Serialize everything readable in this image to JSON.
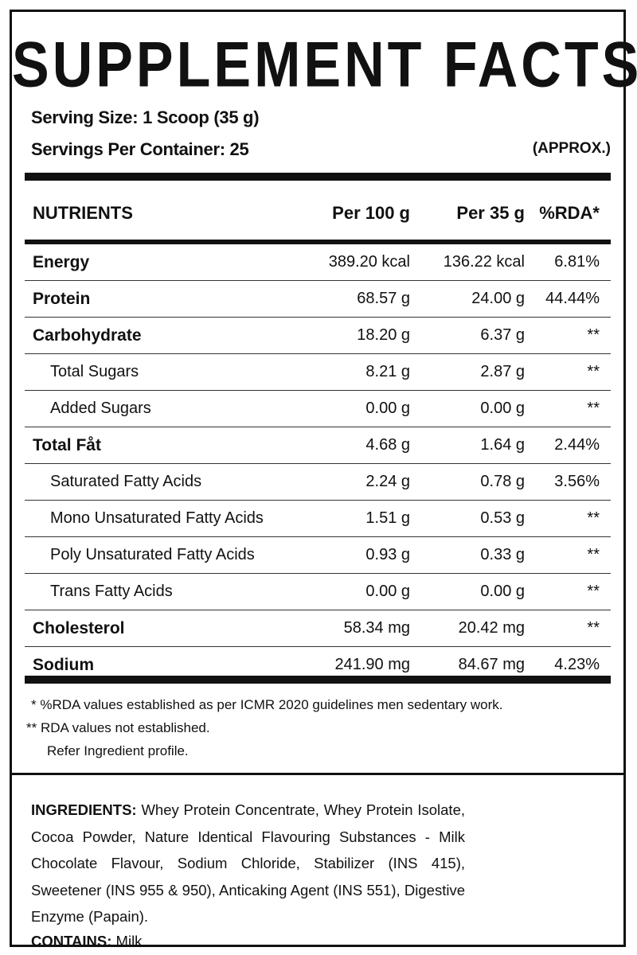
{
  "title": "SUPPLEMENT FACTS",
  "serving": {
    "size": "Serving Size: 1 Scoop (35 g)",
    "per_container": "Servings Per Container: 25",
    "approx": "(APPROX.)"
  },
  "table": {
    "headers": {
      "name": "NUTRIENTS",
      "per100": "Per 100 g",
      "per35": "Per 35 g",
      "rda": "%RDA*"
    },
    "rows": [
      {
        "name": "Energy",
        "per100": "389.20 kcal",
        "per35": "136.22 kcal",
        "rda": "6.81%"
      },
      {
        "name": "Protein",
        "per100": "68.57 g",
        "per35": "24.00 g",
        "rda": "44.44%"
      },
      {
        "name": "Carbohydrate",
        "per100": "18.20 g",
        "per35": "6.37 g",
        "rda": "**"
      },
      {
        "name": "Total Sugars",
        "per100": "8.21 g",
        "per35": "2.87 g",
        "rda": "**"
      },
      {
        "name": "Added Sugars",
        "per100": "0.00 g",
        "per35": "0.00 g",
        "rda": "**"
      },
      {
        "name": "Total Fåt",
        "per100": "4.68 g",
        "per35": "1.64 g",
        "rda": "2.44%"
      },
      {
        "name": "Saturated Fatty Acids",
        "per100": "2.24 g",
        "per35": "0.78 g",
        "rda": "3.56%"
      },
      {
        "name": "Mono Unsaturated Fatty Acids",
        "per100": "1.51 g",
        "per35": "0.53 g",
        "rda": "**"
      },
      {
        "name": "Poly Unsaturated Fatty Acids",
        "per100": "0.93 g",
        "per35": "0.33 g",
        "rda": "**"
      },
      {
        "name": "Trans Fatty Acids",
        "per100": "0.00 g",
        "per35": "0.00 g",
        "rda": "**"
      },
      {
        "name": "Cholesterol",
        "per100": "58.34 mg",
        "per35": "20.42 mg",
        "rda": "**"
      },
      {
        "name": "Sodium",
        "per100": "241.90 mg",
        "per35": "84.67 mg",
        "rda": "4.23%"
      }
    ]
  },
  "footnotes": {
    "rda_note": "*  %RDA values established as per ICMR 2020 guidelines men sedentary work.",
    "not_established": "** RDA values not established.",
    "refer": "Refer Ingredient profile."
  },
  "ingredients": {
    "label": "INGREDIENTS:",
    "text": "Whey Protein Concentrate, Whey Protein Isolate, Cocoa Powder, Nature Identical Flavouring Substances - Milk Chocolate Flavour, Sodium Chloride, Stabilizer (INS 415), Sweetener (INS 955 & 950), Anticaking Agent (INS 551), Digestive Enzyme (Papain)."
  },
  "contains": {
    "label": "CONTAINS:",
    "text": "Milk."
  }
}
